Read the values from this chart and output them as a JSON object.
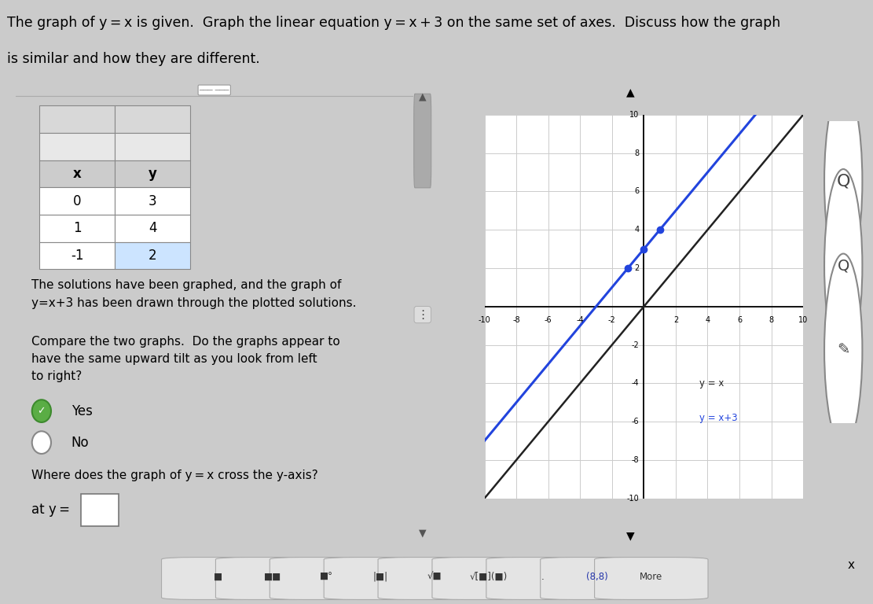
{
  "title_line1": "The graph of y = x is given.  Graph the linear equation y = x + 3 on the same set of axes.  Discuss how the graph",
  "title_line2": "is similar and how they are different.",
  "table_headers": [
    "x",
    "y"
  ],
  "table_data": [
    [
      0,
      3
    ],
    [
      1,
      4
    ],
    [
      -1,
      2
    ]
  ],
  "graph_xlim": [
    -10,
    10
  ],
  "graph_ylim": [
    -10,
    10
  ],
  "line1_label": "y = x",
  "line1_color": "#222222",
  "line2_label": "y = x+3",
  "line2_color": "#2244dd",
  "dot_color": "#2244dd",
  "dot_points": [
    [
      0,
      3
    ],
    [
      1,
      4
    ],
    [
      -1,
      2
    ]
  ],
  "bg_color": "#cbcbcb",
  "left_panel_bg": "#d4d4d4",
  "right_panel_bg": "#e0e0e0",
  "title_bg": "#e8e8e8",
  "graph_bg": "#ffffff",
  "solutions_text": "The solutions have been graphed, and the graph of\ny=x+3 has been drawn through the plotted solutions.",
  "compare_text": "Compare the two graphs.  Do the graphs appear to\nhave the same upward tilt as you look from left\nto right?",
  "yes_text": "Yes",
  "no_text": "No",
  "where_text": "Where does the graph of y = x cross the y-axis?",
  "at_y_text": "at y ="
}
